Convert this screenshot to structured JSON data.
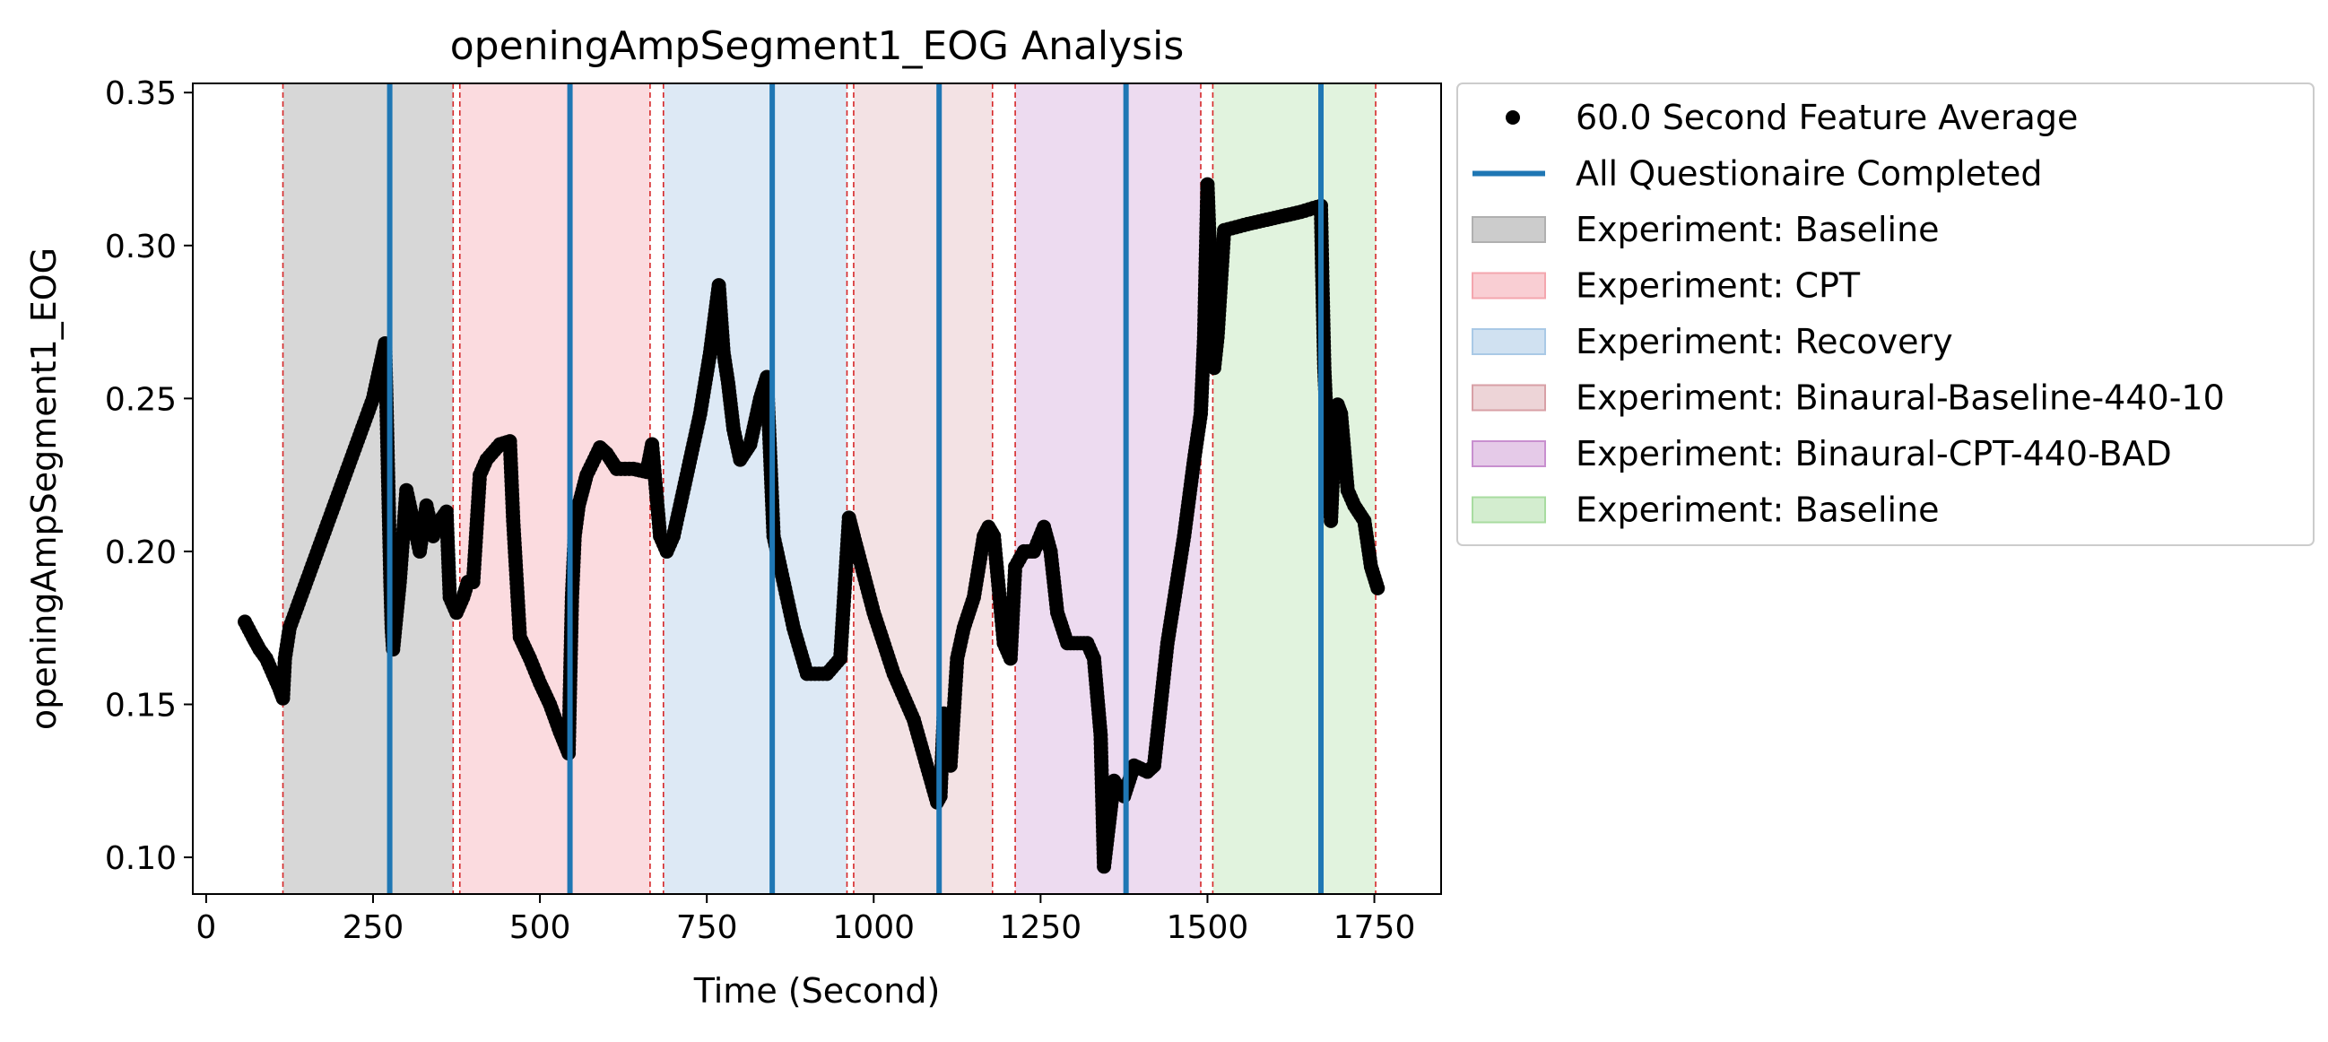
{
  "chart_data": {
    "type": "scatter",
    "title": "openingAmpSegment1_EOG Analysis",
    "xlabel": "Time (Second)",
    "ylabel": "openingAmpSegment1_EOG",
    "xlim": [
      -20,
      1850
    ],
    "ylim": [
      0.088,
      0.353
    ],
    "xticks": [
      0,
      250,
      500,
      750,
      1000,
      1250,
      1500,
      1750
    ],
    "yticks": [
      0.1,
      0.15,
      0.2,
      0.25,
      0.3,
      0.35
    ],
    "xtick_labels": [
      "0",
      "250",
      "500",
      "750",
      "1000",
      "1250",
      "1500",
      "1750"
    ],
    "ytick_labels": [
      "0.10",
      "0.15",
      "0.20",
      "0.25",
      "0.30",
      "0.35"
    ],
    "grid": false,
    "legend_placement": "outside-right-top",
    "legend": [
      "60.0 Second Feature Average",
      "All Questionaire Completed",
      "Experiment: Baseline",
      "Experiment: CPT",
      "Experiment: Recovery",
      "Experiment: Binaural-Baseline-440-10",
      "Experiment: Binaural-CPT-440-BAD",
      "Experiment: Baseline"
    ],
    "series": {
      "feature_average": {
        "color": "#000000",
        "points": [
          [
            58,
            0.177
          ],
          [
            70,
            0.172
          ],
          [
            80,
            0.168
          ],
          [
            90,
            0.165
          ],
          [
            100,
            0.16
          ],
          [
            110,
            0.155
          ],
          [
            115,
            0.152
          ],
          [
            118,
            0.165
          ],
          [
            125,
            0.175
          ],
          [
            150,
            0.19
          ],
          [
            175,
            0.205
          ],
          [
            200,
            0.22
          ],
          [
            225,
            0.235
          ],
          [
            250,
            0.25
          ],
          [
            265,
            0.265
          ],
          [
            268,
            0.268
          ],
          [
            270,
            0.25
          ],
          [
            272,
            0.23
          ],
          [
            274,
            0.21
          ],
          [
            276,
            0.19
          ],
          [
            278,
            0.175
          ],
          [
            280,
            0.168
          ],
          [
            290,
            0.19
          ],
          [
            300,
            0.22
          ],
          [
            310,
            0.21
          ],
          [
            320,
            0.2
          ],
          [
            330,
            0.215
          ],
          [
            340,
            0.205
          ],
          [
            350,
            0.21
          ],
          [
            360,
            0.213
          ],
          [
            365,
            0.185
          ],
          [
            375,
            0.18
          ],
          [
            385,
            0.185
          ],
          [
            392,
            0.19
          ],
          [
            400,
            0.19
          ],
          [
            410,
            0.225
          ],
          [
            420,
            0.23
          ],
          [
            440,
            0.235
          ],
          [
            455,
            0.236
          ],
          [
            460,
            0.21
          ],
          [
            470,
            0.172
          ],
          [
            485,
            0.165
          ],
          [
            500,
            0.157
          ],
          [
            515,
            0.15
          ],
          [
            530,
            0.141
          ],
          [
            543,
            0.134
          ],
          [
            545,
            0.155
          ],
          [
            548,
            0.185
          ],
          [
            552,
            0.205
          ],
          [
            558,
            0.215
          ],
          [
            570,
            0.225
          ],
          [
            590,
            0.234
          ],
          [
            600,
            0.232
          ],
          [
            615,
            0.227
          ],
          [
            640,
            0.227
          ],
          [
            660,
            0.226
          ],
          [
            668,
            0.235
          ],
          [
            680,
            0.205
          ],
          [
            690,
            0.2
          ],
          [
            700,
            0.205
          ],
          [
            720,
            0.225
          ],
          [
            740,
            0.245
          ],
          [
            755,
            0.265
          ],
          [
            768,
            0.287
          ],
          [
            775,
            0.265
          ],
          [
            782,
            0.255
          ],
          [
            790,
            0.24
          ],
          [
            800,
            0.23
          ],
          [
            815,
            0.235
          ],
          [
            830,
            0.25
          ],
          [
            840,
            0.257
          ],
          [
            850,
            0.205
          ],
          [
            860,
            0.195
          ],
          [
            880,
            0.175
          ],
          [
            900,
            0.16
          ],
          [
            930,
            0.16
          ],
          [
            950,
            0.165
          ],
          [
            963,
            0.211
          ],
          [
            970,
            0.205
          ],
          [
            1000,
            0.18
          ],
          [
            1030,
            0.16
          ],
          [
            1060,
            0.145
          ],
          [
            1095,
            0.118
          ],
          [
            1100,
            0.12
          ],
          [
            1105,
            0.147
          ],
          [
            1115,
            0.13
          ],
          [
            1125,
            0.165
          ],
          [
            1135,
            0.175
          ],
          [
            1150,
            0.185
          ],
          [
            1165,
            0.205
          ],
          [
            1172,
            0.208
          ],
          [
            1180,
            0.205
          ],
          [
            1195,
            0.17
          ],
          [
            1205,
            0.165
          ],
          [
            1212,
            0.195
          ],
          [
            1225,
            0.2
          ],
          [
            1240,
            0.2
          ],
          [
            1255,
            0.208
          ],
          [
            1265,
            0.2
          ],
          [
            1275,
            0.18
          ],
          [
            1290,
            0.17
          ],
          [
            1305,
            0.17
          ],
          [
            1320,
            0.17
          ],
          [
            1330,
            0.165
          ],
          [
            1340,
            0.14
          ],
          [
            1345,
            0.097
          ],
          [
            1352,
            0.11
          ],
          [
            1360,
            0.125
          ],
          [
            1375,
            0.12
          ],
          [
            1390,
            0.13
          ],
          [
            1410,
            0.128
          ],
          [
            1420,
            0.13
          ],
          [
            1440,
            0.17
          ],
          [
            1465,
            0.205
          ],
          [
            1480,
            0.23
          ],
          [
            1490,
            0.245
          ],
          [
            1495,
            0.27
          ],
          [
            1500,
            0.32
          ],
          [
            1505,
            0.29
          ],
          [
            1510,
            0.26
          ],
          [
            1515,
            0.27
          ],
          [
            1525,
            0.305
          ],
          [
            1560,
            0.307
          ],
          [
            1600,
            0.309
          ],
          [
            1640,
            0.311
          ],
          [
            1670,
            0.313
          ],
          [
            1672,
            0.29
          ],
          [
            1675,
            0.26
          ],
          [
            1680,
            0.235
          ],
          [
            1685,
            0.21
          ],
          [
            1690,
            0.235
          ],
          [
            1695,
            0.248
          ],
          [
            1700,
            0.245
          ],
          [
            1710,
            0.22
          ],
          [
            1720,
            0.215
          ],
          [
            1735,
            0.21
          ],
          [
            1745,
            0.195
          ],
          [
            1755,
            0.188
          ]
        ]
      },
      "questionnaire_completed": {
        "color": "#1f77b4",
        "x": [
          275,
          545,
          848,
          1098,
          1378,
          1670
        ]
      },
      "experiment_segments": [
        {
          "label_index": 2,
          "start": 115,
          "end": 370,
          "color": "#b0b0b0",
          "alpha": 0.5
        },
        {
          "label_index": 3,
          "start": 380,
          "end": 665,
          "color": "#f4a6ae",
          "alpha": 0.4
        },
        {
          "label_index": 4,
          "start": 685,
          "end": 960,
          "color": "#a9c9e6",
          "alpha": 0.4
        },
        {
          "label_index": 5,
          "start": 970,
          "end": 1178,
          "color": "#d8a0a6",
          "alpha": 0.3
        },
        {
          "label_index": 6,
          "start": 1212,
          "end": 1490,
          "color": "#c88fcf",
          "alpha": 0.32
        },
        {
          "label_index": 7,
          "start": 1508,
          "end": 1752,
          "color": "#a8dca0",
          "alpha": 0.35
        }
      ],
      "segment_boundary_lines": {
        "color": "#d62728",
        "x": [
          115,
          370,
          380,
          665,
          685,
          960,
          970,
          1178,
          1212,
          1490,
          1508,
          1752
        ]
      }
    }
  }
}
